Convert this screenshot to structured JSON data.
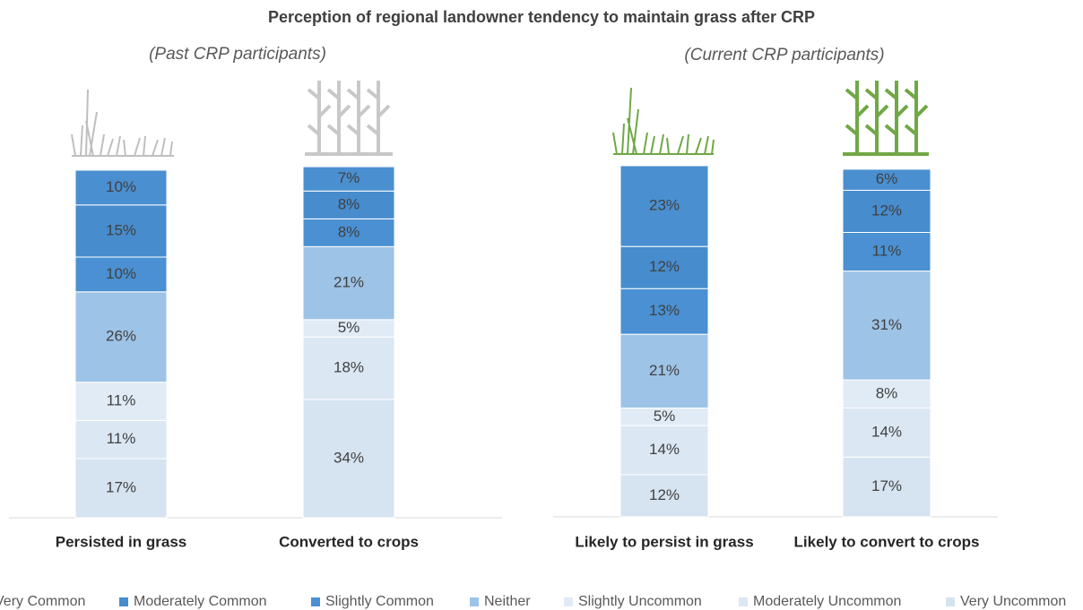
{
  "chart_data": [
    {
      "type": "bar",
      "stacked": true,
      "title": "Perception of regional landowner tendency to maintain grass after CRP",
      "subtitle": "(Past CRP participants)",
      "categories": [
        "Persisted in grass",
        "Converted to crops"
      ],
      "ylim": [
        0,
        100
      ],
      "series": [
        {
          "name": "Very Uncommon",
          "color": "#d6e3f0",
          "values": [
            17,
            34
          ],
          "value_labels": [
            "17%",
            "34%"
          ]
        },
        {
          "name": "Moderately Uncommon",
          "color": "#dbe7f3",
          "values": [
            11,
            18
          ],
          "value_labels": [
            "11%",
            "18%"
          ]
        },
        {
          "name": "Slightly Uncommon",
          "color": "#e1ebf6",
          "values": [
            11,
            5
          ],
          "value_labels": [
            "11%",
            "5%"
          ]
        },
        {
          "name": "Neither",
          "color": "#9dc3e6",
          "values": [
            26,
            21
          ],
          "value_labels": [
            "26%",
            "21%"
          ]
        },
        {
          "name": "Slightly Common",
          "color": "#4a90d2",
          "values": [
            10,
            8
          ],
          "value_labels": [
            "10%",
            "8%"
          ]
        },
        {
          "name": "Moderately Common",
          "color": "#478ccd",
          "values": [
            15,
            8
          ],
          "value_labels": [
            "15%",
            "8%"
          ]
        },
        {
          "name": "Very Common",
          "color": "#4a8fd0",
          "values": [
            10,
            7
          ],
          "value_labels": [
            "10%",
            "7%"
          ]
        }
      ]
    },
    {
      "type": "bar",
      "stacked": true,
      "subtitle": "(Current CRP participants)",
      "categories": [
        "Likely to persist in grass",
        "Likely to convert to crops"
      ],
      "ylim": [
        0,
        100
      ],
      "series": [
        {
          "name": "Very Uncommon",
          "color": "#d6e3f0",
          "values": [
            12,
            17
          ],
          "value_labels": [
            "12%",
            "17%"
          ]
        },
        {
          "name": "Moderately Uncommon",
          "color": "#dbe7f3",
          "values": [
            14,
            14
          ],
          "value_labels": [
            "14%",
            "14%"
          ]
        },
        {
          "name": "Slightly Uncommon",
          "color": "#e1ebf6",
          "values": [
            5,
            8
          ],
          "value_labels": [
            "5%",
            "8%"
          ]
        },
        {
          "name": "Neither",
          "color": "#9dc3e6",
          "values": [
            21,
            31
          ],
          "value_labels": [
            "21%",
            "31%"
          ]
        },
        {
          "name": "Slightly Common",
          "color": "#4a90d2",
          "values": [
            13,
            11
          ],
          "value_labels": [
            "13%",
            "11%"
          ]
        },
        {
          "name": "Moderately Common",
          "color": "#478ccd",
          "values": [
            12,
            12
          ],
          "value_labels": [
            "12%",
            "12%"
          ]
        },
        {
          "name": "Very Common",
          "color": "#4a8fd0",
          "values": [
            23,
            6
          ],
          "value_labels": [
            "23%",
            "6%"
          ]
        }
      ]
    }
  ]
}
